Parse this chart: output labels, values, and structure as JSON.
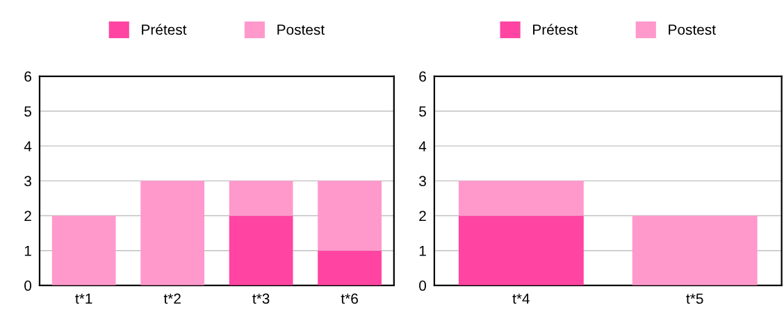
{
  "chart_data": [
    {
      "type": "bar",
      "stacked": true,
      "categories": [
        "t*1",
        "t*2",
        "t*3",
        "t*6"
      ],
      "ylim": [
        0,
        6
      ],
      "yticks": [
        0,
        1,
        2,
        3,
        4,
        5,
        6
      ],
      "grid": "y",
      "legend": "top",
      "series": [
        {
          "name": "Prétest",
          "color": "#ff44a1",
          "values": [
            0,
            0,
            2,
            1
          ]
        },
        {
          "name": "Postest",
          "color": "#ff99cc",
          "values": [
            2,
            3,
            1,
            2
          ]
        }
      ]
    },
    {
      "type": "bar",
      "stacked": true,
      "categories": [
        "t*4",
        "t*5"
      ],
      "ylim": [
        0,
        6
      ],
      "yticks": [
        0,
        1,
        2,
        3,
        4,
        5,
        6
      ],
      "grid": "y",
      "legend": "top",
      "series": [
        {
          "name": "Prétest",
          "color": "#ff44a1",
          "values": [
            2,
            0
          ]
        },
        {
          "name": "Postest",
          "color": "#ff99cc",
          "values": [
            1,
            2
          ]
        }
      ]
    }
  ]
}
